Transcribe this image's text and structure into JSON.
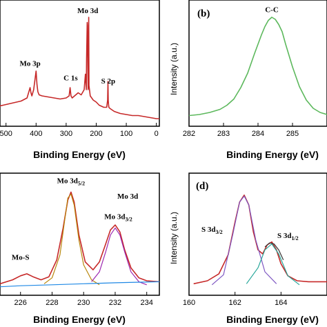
{
  "chart_data": [
    {
      "panel": "a",
      "type": "line",
      "panel_label": "",
      "xlabel": "Binding Energy (eV)",
      "ylabel": "",
      "xlim": [
        520,
        -10
      ],
      "x_ticks": [
        {
          "v": 500,
          "t": "500"
        },
        {
          "v": 400,
          "t": "400"
        },
        {
          "v": 300,
          "t": "300"
        },
        {
          "v": 200,
          "t": "200"
        },
        {
          "v": 100,
          "t": "100"
        },
        {
          "v": 0,
          "t": "0"
        }
      ],
      "annotations": [
        {
          "text": "Mo 3d",
          "x": 228,
          "y": 1.04
        },
        {
          "text": "Mo 3p",
          "x": 420,
          "y": 0.53
        },
        {
          "text": "C 1s",
          "x": 285,
          "y": 0.39
        },
        {
          "text": "S 2p",
          "x": 160,
          "y": 0.36
        }
      ],
      "series": [
        {
          "color": "#c62828",
          "x": [
            525,
            510,
            480,
            450,
            430,
            420,
            417,
            414,
            408,
            400,
            397,
            394,
            390,
            380,
            360,
            340,
            320,
            300,
            290,
            287,
            284,
            280,
            260,
            250,
            240,
            236,
            233,
            232,
            230,
            229,
            228,
            227,
            226,
            225,
            224,
            220,
            210,
            200,
            190,
            175,
            165,
            162,
            161,
            160,
            159,
            158,
            155,
            140,
            120,
            100,
            80,
            60,
            40,
            20,
            0,
            -10
          ],
          "y": [
            0.14,
            0.15,
            0.17,
            0.19,
            0.22,
            0.32,
            0.27,
            0.24,
            0.3,
            0.48,
            0.35,
            0.28,
            0.25,
            0.24,
            0.23,
            0.22,
            0.21,
            0.22,
            0.24,
            0.32,
            0.24,
            0.22,
            0.27,
            0.25,
            0.3,
            0.45,
            0.3,
            0.6,
            0.95,
            0.92,
            0.55,
            0.3,
            0.34,
            1.0,
            0.34,
            0.24,
            0.2,
            0.18,
            0.15,
            0.13,
            0.13,
            0.2,
            0.38,
            0.2,
            0.16,
            0.13,
            0.12,
            0.09,
            0.07,
            0.06,
            0.05,
            0.05,
            0.04,
            0.03,
            0.02,
            0.02
          ]
        }
      ]
    },
    {
      "panel": "b",
      "type": "line",
      "panel_label": "(b)",
      "xlabel": "Binding Energy (eV)",
      "ylabel": "Intensity (a.u.)",
      "xlim": [
        282,
        286
      ],
      "x_ticks": [
        {
          "v": 282,
          "t": "282"
        },
        {
          "v": 283,
          "t": "283"
        },
        {
          "v": 284,
          "t": "284"
        },
        {
          "v": 285,
          "t": "285"
        }
      ],
      "annotations": [
        {
          "text": "C-C",
          "x": 284.4,
          "y": 1.05
        }
      ],
      "series": [
        {
          "color": "#5cb85c",
          "x": [
            282.0,
            282.3,
            282.6,
            282.9,
            283.1,
            283.3,
            283.5,
            283.7,
            283.9,
            284.1,
            284.2,
            284.3,
            284.4,
            284.5,
            284.6,
            284.7,
            284.8,
            285.0,
            285.2,
            285.4,
            285.6,
            285.8,
            286.0
          ],
          "y": [
            0.05,
            0.06,
            0.08,
            0.11,
            0.15,
            0.21,
            0.32,
            0.46,
            0.65,
            0.83,
            0.91,
            0.97,
            1.0,
            0.98,
            0.93,
            0.86,
            0.74,
            0.52,
            0.33,
            0.2,
            0.12,
            0.08,
            0.06
          ]
        }
      ]
    },
    {
      "panel": "c",
      "type": "line",
      "panel_label": "",
      "xlabel": "Binding Energy (eV)",
      "ylabel": "",
      "xlim": [
        224.7,
        234.8
      ],
      "x_ticks": [
        {
          "v": 226,
          "t": "226"
        },
        {
          "v": 228,
          "t": "228"
        },
        {
          "v": 230,
          "t": "230"
        },
        {
          "v": 232,
          "t": "232"
        },
        {
          "v": 234,
          "t": "234"
        }
      ],
      "title": "Mo 3d",
      "annotations": [
        {
          "text": "Mo-S",
          "x": 226.0,
          "y": 0.3
        },
        {
          "text": "Mo 3d5/2",
          "x": 229.2,
          "y": 1.07
        },
        {
          "text": "Mo 3d3/2",
          "x": 232.2,
          "y": 0.71
        }
      ],
      "series": [
        {
          "color": "#c62828",
          "x": [
            224.7,
            225.5,
            226.0,
            226.4,
            226.8,
            227.3,
            227.8,
            228.3,
            228.7,
            229.0,
            229.2,
            229.4,
            229.7,
            230.1,
            230.6,
            231.0,
            231.4,
            231.7,
            232.0,
            232.3,
            232.6,
            233.0,
            233.5,
            234.0,
            234.8
          ],
          "y": [
            0.06,
            0.1,
            0.14,
            0.16,
            0.13,
            0.1,
            0.13,
            0.3,
            0.62,
            0.9,
            0.98,
            0.88,
            0.55,
            0.28,
            0.2,
            0.28,
            0.46,
            0.6,
            0.65,
            0.58,
            0.4,
            0.22,
            0.12,
            0.09,
            0.08
          ]
        },
        {
          "color": "#b8860b",
          "x": [
            227.5,
            228.0,
            228.5,
            228.8,
            229.0,
            229.2,
            229.4,
            229.7,
            230.0,
            230.5,
            231.0
          ],
          "y": [
            0.06,
            0.12,
            0.35,
            0.7,
            0.92,
            0.96,
            0.85,
            0.5,
            0.25,
            0.1,
            0.05
          ]
        },
        {
          "color": "#9c27b0",
          "x": [
            230.5,
            231.0,
            231.4,
            231.7,
            232.0,
            232.3,
            232.6,
            233.0,
            233.5,
            234.0
          ],
          "y": [
            0.08,
            0.18,
            0.38,
            0.55,
            0.62,
            0.55,
            0.38,
            0.18,
            0.08,
            0.05
          ]
        },
        {
          "color": "#1e88e5",
          "x": [
            224.7,
            226.0,
            228.0,
            230.0,
            232.0,
            234.8
          ],
          "y": [
            0.03,
            0.04,
            0.05,
            0.06,
            0.07,
            0.08
          ]
        }
      ]
    },
    {
      "panel": "d",
      "type": "line",
      "panel_label": "(d)",
      "xlabel": "Binding Energy (eV)",
      "ylabel": "Intensity (a.u.)",
      "xlim": [
        160,
        166
      ],
      "x_ticks": [
        {
          "v": 160,
          "t": "160"
        },
        {
          "v": 162,
          "t": "162"
        },
        {
          "v": 164,
          "t": "164"
        }
      ],
      "annotations": [
        {
          "text": "S 3d3/2",
          "x": 161.0,
          "y": 0.58
        },
        {
          "text": "S 3d1/2",
          "x": 164.3,
          "y": 0.52
        }
      ],
      "series": [
        {
          "color": "#c62828",
          "x": [
            160.2,
            160.8,
            161.3,
            161.7,
            162.0,
            162.2,
            162.4,
            162.6,
            162.8,
            163.0,
            163.2,
            163.4,
            163.6,
            163.8,
            164.0,
            164.3,
            164.7,
            165.2,
            166.0
          ],
          "y": [
            0.06,
            0.09,
            0.16,
            0.35,
            0.68,
            0.88,
            0.95,
            0.85,
            0.58,
            0.4,
            0.36,
            0.45,
            0.48,
            0.4,
            0.26,
            0.14,
            0.09,
            0.08,
            0.08
          ]
        },
        {
          "color": "#7e57c2",
          "x": [
            161.0,
            161.5,
            161.9,
            162.2,
            162.4,
            162.6,
            162.9,
            163.3,
            163.8
          ],
          "y": [
            0.05,
            0.15,
            0.55,
            0.88,
            0.94,
            0.85,
            0.5,
            0.18,
            0.06
          ]
        },
        {
          "color": "#26a69a",
          "x": [
            162.5,
            163.0,
            163.3,
            163.6,
            163.9,
            164.3,
            164.8
          ],
          "y": [
            0.06,
            0.22,
            0.4,
            0.46,
            0.36,
            0.14,
            0.05
          ]
        },
        {
          "color": "#333333",
          "x": [
            163.3,
            163.5,
            163.7,
            163.9,
            164.1
          ],
          "y": [
            0.43,
            0.47,
            0.46,
            0.4,
            0.3
          ]
        }
      ]
    }
  ]
}
